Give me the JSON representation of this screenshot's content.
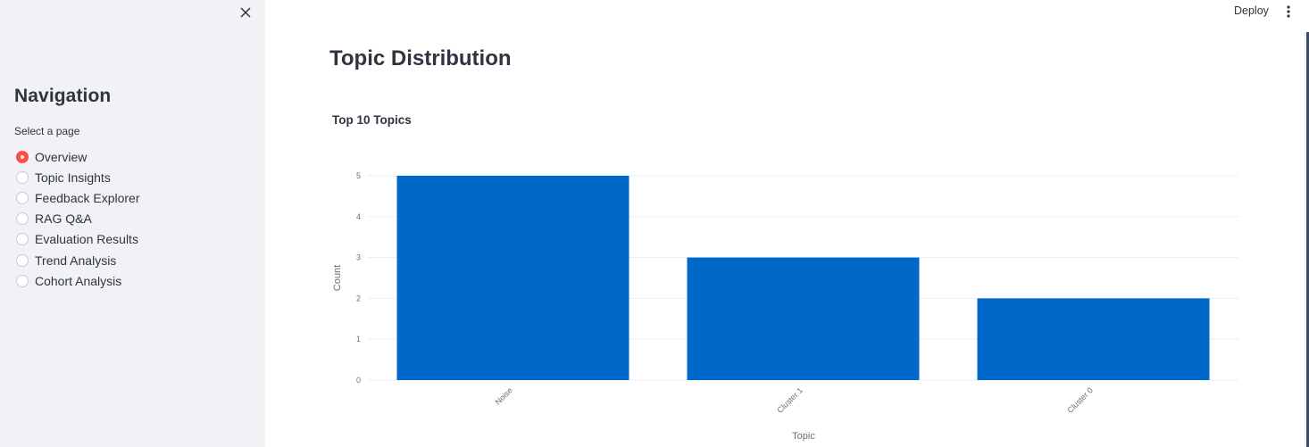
{
  "sidebar": {
    "close_icon": "close-icon",
    "title": "Navigation",
    "select_label": "Select a page",
    "selected": "Overview",
    "pages": [
      {
        "label": "Overview",
        "checked": true
      },
      {
        "label": "Topic Insights",
        "checked": false
      },
      {
        "label": "Feedback Explorer",
        "checked": false
      },
      {
        "label": "RAG Q&A",
        "checked": false
      },
      {
        "label": "Evaluation Results",
        "checked": false
      },
      {
        "label": "Trend Analysis",
        "checked": false
      },
      {
        "label": "Cohort Analysis",
        "checked": false
      }
    ]
  },
  "header": {
    "deploy_label": "Deploy",
    "menu_icon": "more-vertical-icon"
  },
  "main": {
    "title": "Topic Distribution"
  },
  "chart_data": {
    "type": "bar",
    "title": "Top 10 Topics",
    "categories": [
      "Noise",
      "Cluster 1",
      "Cluster 0"
    ],
    "values": [
      5,
      3,
      2
    ],
    "xlabel": "Topic",
    "ylabel": "Count",
    "ylim": [
      0,
      5
    ],
    "yticks": [
      0,
      1,
      2,
      3,
      4,
      5
    ],
    "grid": true,
    "bar_color": "#0068c9"
  },
  "colors": {
    "accent": "#ff4b4b",
    "sidebar_bg": "#f0f2f6",
    "bar": "#0068c9"
  }
}
